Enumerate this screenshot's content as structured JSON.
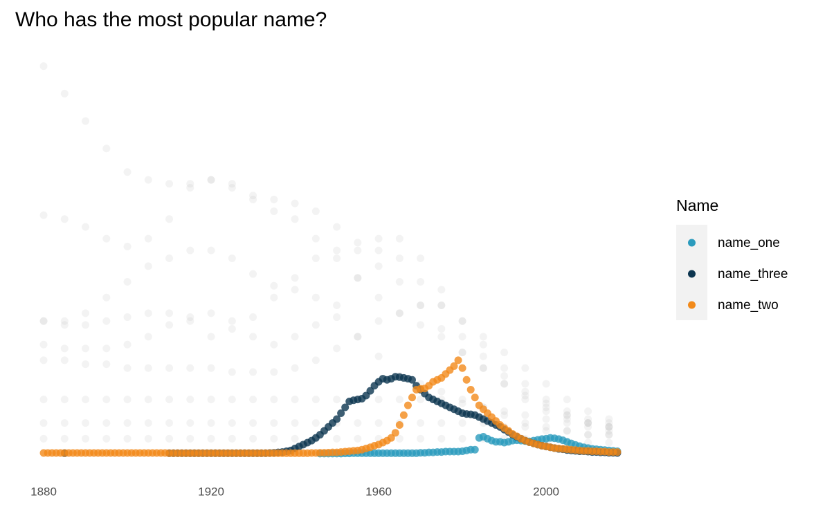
{
  "chart_data": {
    "type": "scatter",
    "title": "Who has the most popular name?",
    "legend_title": "Name",
    "legend_position": "right",
    "grid": false,
    "xlim": [
      1879,
      2018
    ],
    "ylim": [
      0,
      100
    ],
    "xticks": [
      1880,
      1920,
      1960,
      2000
    ],
    "x": [
      1880,
      1881,
      1882,
      1883,
      1884,
      1885,
      1886,
      1887,
      1888,
      1889,
      1890,
      1891,
      1892,
      1893,
      1894,
      1895,
      1896,
      1897,
      1898,
      1899,
      1900,
      1901,
      1902,
      1903,
      1904,
      1905,
      1906,
      1907,
      1908,
      1909,
      1910,
      1911,
      1912,
      1913,
      1914,
      1915,
      1916,
      1917,
      1918,
      1919,
      1920,
      1921,
      1922,
      1923,
      1924,
      1925,
      1926,
      1927,
      1928,
      1929,
      1930,
      1931,
      1932,
      1933,
      1934,
      1935,
      1936,
      1937,
      1938,
      1939,
      1940,
      1941,
      1942,
      1943,
      1944,
      1945,
      1946,
      1947,
      1948,
      1949,
      1950,
      1951,
      1952,
      1953,
      1954,
      1955,
      1956,
      1957,
      1958,
      1959,
      1960,
      1961,
      1962,
      1963,
      1964,
      1965,
      1966,
      1967,
      1968,
      1969,
      1970,
      1971,
      1972,
      1973,
      1974,
      1975,
      1976,
      1977,
      1978,
      1979,
      1980,
      1981,
      1982,
      1983,
      1984,
      1985,
      1986,
      1987,
      1988,
      1989,
      1990,
      1991,
      1992,
      1993,
      1994,
      1995,
      1996,
      1997,
      1998,
      1999,
      2000,
      2001,
      2002,
      2003,
      2004,
      2005,
      2006,
      2007,
      2008,
      2009,
      2010,
      2011,
      2012,
      2013,
      2014,
      2015,
      2016,
      2017
    ],
    "series": [
      {
        "name": "name_one",
        "color": "#2b9bbd",
        "values": [
          null,
          null,
          null,
          null,
          null,
          null,
          null,
          null,
          null,
          null,
          null,
          null,
          null,
          null,
          null,
          null,
          null,
          null,
          null,
          null,
          null,
          null,
          null,
          null,
          null,
          null,
          null,
          null,
          null,
          null,
          null,
          null,
          null,
          null,
          null,
          null,
          null,
          null,
          null,
          null,
          null,
          null,
          null,
          null,
          null,
          null,
          null,
          null,
          null,
          null,
          null,
          null,
          null,
          null,
          null,
          null,
          null,
          null,
          null,
          null,
          null,
          null,
          null,
          null,
          null,
          null,
          0.2,
          0.2,
          0.2,
          0.2,
          0.2,
          0.2,
          0.25,
          0.25,
          0.3,
          0.3,
          0.3,
          0.3,
          0.3,
          0.3,
          0.3,
          0.3,
          0.3,
          0.3,
          0.3,
          0.3,
          0.3,
          0.3,
          0.3,
          0.3,
          0.4,
          0.4,
          0.5,
          0.5,
          0.6,
          0.6,
          0.7,
          0.7,
          0.7,
          0.7,
          0.8,
          1.0,
          1.2,
          1.2,
          4.2,
          4.5,
          4.0,
          3.5,
          3.2,
          3.2,
          3.0,
          3.2,
          3.5,
          3.6,
          3.5,
          3.4,
          3.3,
          3.5,
          3.7,
          3.9,
          4.0,
          4.2,
          4.1,
          3.9,
          3.6,
          3.2,
          2.8,
          2.4,
          2.1,
          1.8,
          1.6,
          1.4,
          1.3,
          1.2,
          1.1,
          1.0,
          0.9,
          0.8
        ]
      },
      {
        "name": "name_three",
        "color": "#0d3650",
        "values": [
          null,
          null,
          null,
          null,
          null,
          0.3,
          null,
          null,
          null,
          null,
          null,
          null,
          null,
          null,
          null,
          null,
          null,
          null,
          null,
          null,
          null,
          null,
          null,
          null,
          null,
          null,
          null,
          null,
          null,
          null,
          0.3,
          0.3,
          0.3,
          0.3,
          0.3,
          0.3,
          0.3,
          0.3,
          0.3,
          0.3,
          0.3,
          0.3,
          0.3,
          0.3,
          0.3,
          0.3,
          0.3,
          0.3,
          0.3,
          0.3,
          0.3,
          0.3,
          0.3,
          0.3,
          0.35,
          0.4,
          0.5,
          0.6,
          0.8,
          1.0,
          1.5,
          2.0,
          2.5,
          3.0,
          3.5,
          4.2,
          5.0,
          6.0,
          7.0,
          8.0,
          9.0,
          10.5,
          12.0,
          13.5,
          13.8,
          14.0,
          14.2,
          15.0,
          16.2,
          17.5,
          18.5,
          19.3,
          19.0,
          19.3,
          19.8,
          19.7,
          19.5,
          19.3,
          19.0,
          17.5,
          16.5,
          15.5,
          14.5,
          14.0,
          13.5,
          13.0,
          12.5,
          12.0,
          11.5,
          11.0,
          10.5,
          10.3,
          10.2,
          10.0,
          9.5,
          9.0,
          8.5,
          8.0,
          7.5,
          7.0,
          6.3,
          5.7,
          5.0,
          4.5,
          4.0,
          3.5,
          3.1,
          2.8,
          2.5,
          2.2,
          2.0,
          1.8,
          1.6,
          1.4,
          1.3,
          1.1,
          1.0,
          0.9,
          0.8,
          0.8,
          0.7,
          0.6,
          0.6,
          0.5,
          0.5,
          0.4,
          0.4,
          0.35
        ]
      },
      {
        "name": "name_two",
        "color": "#f28a1a",
        "values": [
          0.35,
          0.35,
          0.35,
          0.35,
          0.35,
          0.35,
          0.35,
          0.35,
          0.35,
          0.35,
          0.35,
          0.35,
          0.35,
          0.35,
          0.35,
          0.35,
          0.35,
          0.35,
          0.35,
          0.35,
          0.35,
          0.35,
          0.35,
          0.35,
          0.35,
          0.35,
          0.35,
          0.35,
          0.35,
          0.35,
          0.3,
          0.3,
          0.3,
          0.3,
          0.3,
          0.3,
          0.3,
          0.3,
          0.3,
          0.3,
          0.3,
          0.3,
          0.3,
          0.3,
          0.3,
          0.3,
          0.3,
          0.3,
          0.3,
          0.3,
          0.3,
          0.3,
          0.3,
          0.3,
          0.3,
          0.3,
          0.3,
          0.3,
          0.3,
          0.3,
          0.3,
          0.3,
          0.3,
          0.3,
          0.35,
          0.35,
          0.4,
          0.4,
          0.45,
          0.5,
          0.5,
          0.6,
          0.7,
          0.8,
          0.9,
          1.0,
          1.2,
          1.5,
          1.8,
          2.2,
          2.5,
          3.0,
          3.5,
          4.2,
          5.5,
          7.5,
          10.0,
          12.5,
          14.5,
          16.5,
          16.7,
          16.8,
          17.5,
          18.5,
          19.0,
          19.5,
          20.5,
          21.5,
          22.5,
          24.0,
          22.0,
          19.0,
          16.5,
          14.5,
          12.5,
          11.5,
          10.5,
          9.5,
          8.5,
          7.5,
          6.7,
          6.0,
          5.2,
          4.6,
          4.0,
          3.5,
          3.1,
          2.8,
          2.5,
          2.2,
          2.0,
          1.8,
          1.6,
          1.5,
          1.4,
          1.3,
          1.2,
          1.1,
          1.0,
          0.9,
          0.9,
          0.8,
          0.8,
          0.7,
          0.7,
          0.6,
          0.6,
          0.6
        ]
      }
    ],
    "background": {
      "color": "#bdbdbd",
      "x": [
        1880,
        1885,
        1890,
        1895,
        1900,
        1905,
        1910,
        1915,
        1920,
        1925,
        1930,
        1935,
        1940,
        1945,
        1950,
        1955,
        1960,
        1965,
        1970,
        1975,
        1980,
        1985,
        1990,
        1995,
        2000,
        2005,
        2010,
        2015
      ],
      "series": [
        {
          "values": [
            99,
            92,
            85,
            78,
            72,
            70,
            69,
            69,
            70,
            68,
            66,
            65,
            64,
            62,
            58,
            52,
            48,
            44,
            38,
            32,
            26,
            22,
            18,
            14,
            11,
            9,
            8,
            7
          ]
        },
        {
          "values": [
            61,
            60,
            58,
            55,
            53,
            55,
            60,
            68,
            70,
            69,
            65,
            62,
            60,
            55,
            50,
            45,
            40,
            36,
            33,
            30,
            26,
            22,
            18,
            15,
            12,
            10,
            8,
            7
          ]
        },
        {
          "values": [
            34,
            33,
            33,
            34,
            35,
            36,
            36,
            34,
            30,
            32,
            35,
            40,
            45,
            50,
            52,
            54,
            55,
            50,
            44,
            38,
            30,
            25,
            20,
            16,
            13,
            10,
            8,
            7
          ]
        },
        {
          "values": [
            34,
            34,
            36,
            40,
            44,
            48,
            50,
            52,
            52,
            50,
            46,
            43,
            42,
            40,
            35,
            30,
            25,
            20,
            18,
            16,
            14,
            12,
            10,
            8,
            7,
            6,
            5,
            5
          ]
        },
        {
          "values": [
            28,
            27,
            27,
            27,
            28,
            30,
            33,
            35,
            36,
            34,
            30,
            28,
            30,
            33,
            38,
            45,
            52,
            55,
            50,
            42,
            34,
            28,
            22,
            18,
            14,
            11,
            9,
            8
          ]
        },
        {
          "values": [
            24,
            24,
            23,
            23,
            22,
            22,
            22,
            22,
            22,
            21,
            21,
            21,
            22,
            24,
            27,
            30,
            34,
            36,
            38,
            38,
            34,
            30,
            26,
            22,
            18,
            14,
            11,
            9
          ]
        },
        {
          "values": [
            14,
            14,
            14,
            14,
            14,
            14,
            14,
            14,
            14,
            14,
            14,
            14,
            14,
            14,
            14,
            14,
            14,
            14,
            14,
            14,
            13,
            12,
            11,
            10,
            9,
            8,
            7,
            6
          ]
        },
        {
          "values": [
            8,
            8,
            8,
            8,
            8,
            8,
            8,
            8,
            8,
            8,
            8,
            8,
            8,
            8,
            8,
            8,
            8,
            8,
            8,
            8,
            8,
            8,
            7,
            7,
            6,
            6,
            5,
            5
          ]
        },
        {
          "values": [
            4,
            4,
            4,
            4,
            4,
            4,
            4,
            4,
            4,
            4,
            4,
            4,
            4,
            4,
            4,
            4,
            4,
            4,
            4,
            4,
            4,
            4,
            4,
            4,
            3,
            3,
            3,
            3
          ]
        }
      ]
    }
  }
}
